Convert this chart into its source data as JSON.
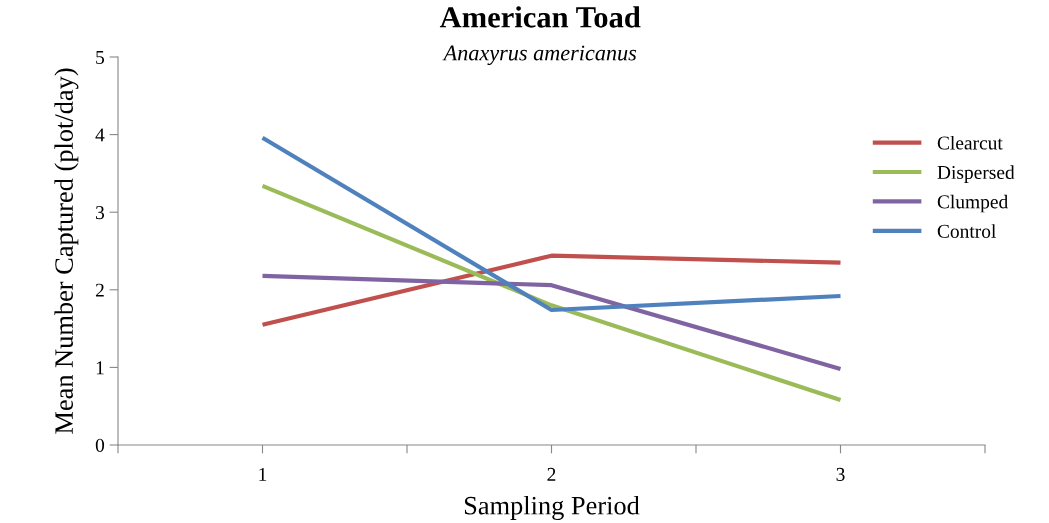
{
  "chart_data": {
    "type": "line",
    "title": "American Toad",
    "subtitle": "Anaxyrus americanus",
    "xlabel": "Sampling Period",
    "ylabel": "Mean Number Captured (plot/day)",
    "x": [
      1,
      2,
      3
    ],
    "series": [
      {
        "name": "Clearcut",
        "color": "#c0504d",
        "values": [
          1.55,
          2.44,
          2.35
        ]
      },
      {
        "name": "Dispersed",
        "color": "#9bbb59",
        "values": [
          3.34,
          1.8,
          0.58
        ]
      },
      {
        "name": "Clumped",
        "color": "#8064a2",
        "values": [
          2.18,
          2.06,
          0.98
        ]
      },
      {
        "name": "Control",
        "color": "#4f81bd",
        "values": [
          3.96,
          1.74,
          1.92
        ]
      }
    ],
    "xlim": [
      0.5,
      3.5
    ],
    "xticks": [
      {
        "value": 0.5,
        "label": null
      },
      1,
      {
        "value": 1.5,
        "label": null
      },
      2,
      {
        "value": 2.5,
        "label": null
      },
      3,
      {
        "value": 3.5,
        "label": null
      }
    ],
    "ylim": [
      0,
      5
    ],
    "yticks": [
      0,
      1,
      2,
      3,
      4,
      5
    ],
    "grid": false,
    "legend": "right",
    "marker": "none",
    "line_style": "solid"
  }
}
